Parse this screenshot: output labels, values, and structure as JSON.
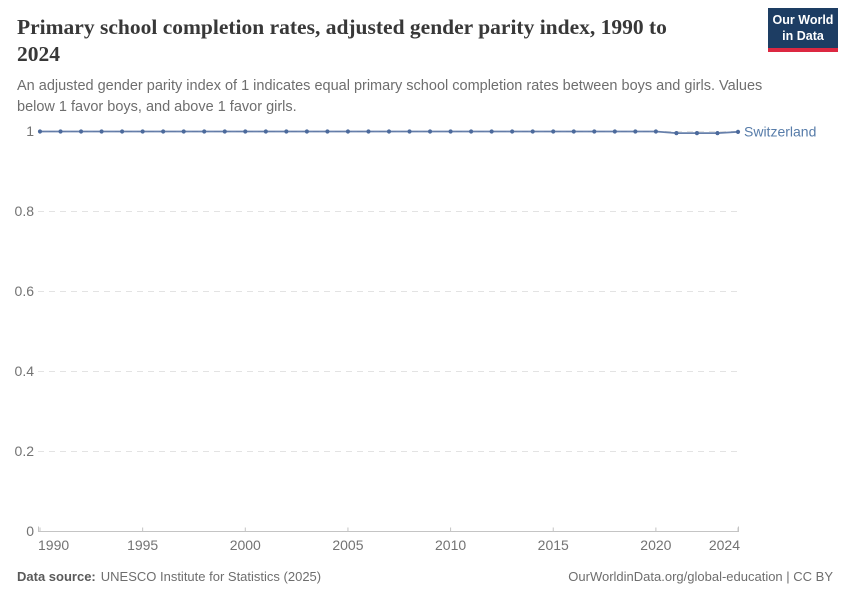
{
  "header": {
    "title": "Primary school completion rates, adjusted gender parity index, 1990 to 2024",
    "subtitle": "An adjusted gender parity index of 1 indicates equal primary school completion rates between boys and girls. Values below 1 favor boys, and above 1 favor girls.",
    "logo": {
      "line1": "Our World",
      "line2": "in Data",
      "bg_color": "#1d3d63",
      "accent_color": "#dc2841"
    }
  },
  "chart_data": {
    "type": "line",
    "title": "Primary school completion rates, adjusted gender parity index, 1990 to 2024",
    "xlabel": "",
    "ylabel": "",
    "ylim": [
      0,
      1
    ],
    "y_ticks": [
      0,
      0.2,
      0.4,
      0.6,
      0.8,
      1
    ],
    "x_ticks": [
      1990,
      1995,
      2000,
      2005,
      2010,
      2015,
      2020,
      2024
    ],
    "grid": "horizontal-dashed",
    "legend_position": "inline-right",
    "axis_color": "#c4c4c4",
    "grid_color": "#e3e3e3",
    "tick_label_color": "#737373",
    "series": [
      {
        "name": "Switzerland",
        "color": "#4c6a9c",
        "label_color": "#577ca9",
        "x": [
          1990,
          1991,
          1992,
          1993,
          1994,
          1995,
          1996,
          1997,
          1998,
          1999,
          2000,
          2001,
          2002,
          2003,
          2004,
          2005,
          2006,
          2007,
          2008,
          2009,
          2010,
          2011,
          2012,
          2013,
          2014,
          2015,
          2016,
          2017,
          2018,
          2019,
          2020,
          2021,
          2022,
          2023,
          2024
        ],
        "values": [
          1.0,
          1.0,
          1.0,
          1.0,
          1.0,
          1.0,
          1.0,
          1.0,
          1.0,
          1.0,
          1.0,
          1.0,
          1.0,
          1.0,
          1.0,
          1.0,
          1.0,
          1.0,
          1.0,
          1.0,
          1.0,
          1.0,
          1.0,
          1.0,
          1.0,
          1.0,
          1.0,
          1.0,
          1.0,
          1.0,
          1.0,
          0.996,
          0.996,
          0.996,
          0.999
        ]
      }
    ]
  },
  "footer": {
    "source_label": "Data source:",
    "source_text": "UNESCO Institute for Statistics (2025)",
    "link_text": "OurWorldinData.org/global-education | CC BY"
  }
}
